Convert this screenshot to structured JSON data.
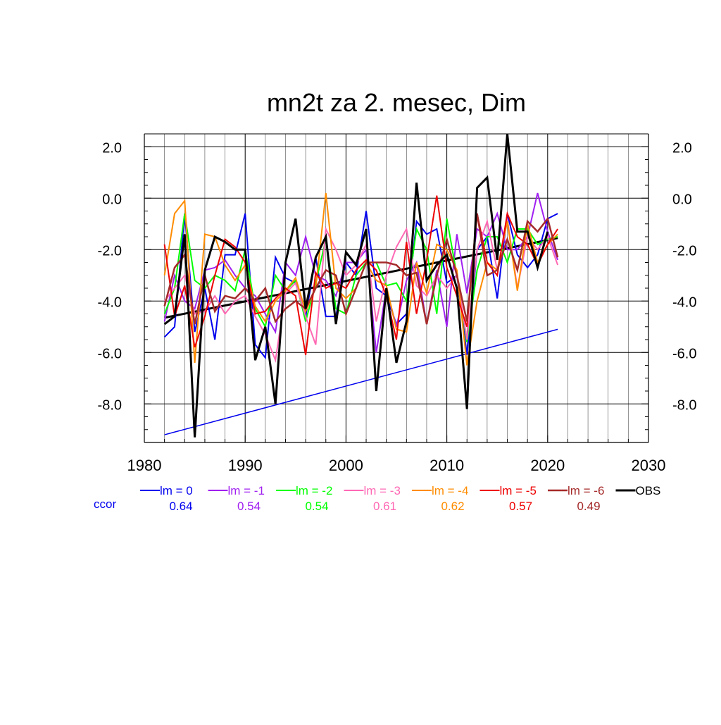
{
  "chart_data": {
    "type": "line",
    "title": "mn2t za 2. mesec, Dim",
    "xlabel": "",
    "ylabel": "",
    "xlim": [
      1980,
      2030
    ],
    "ylim": [
      -9.5,
      2.5
    ],
    "x_ticks": [
      1980,
      1990,
      2000,
      2010,
      2020,
      2030
    ],
    "x_tick_labels": [
      "1980",
      "1990",
      "2000",
      "2010",
      "2020",
      "2030"
    ],
    "y_ticks": [
      2,
      0,
      -2,
      -4,
      -6,
      -8
    ],
    "y_tick_labels": [
      "2.0",
      "0.0",
      "-2.0",
      "-4.0",
      "-6.0",
      "-8.0"
    ],
    "grid": true,
    "legend_position": "bottom",
    "ccor_label": "ccor",
    "x": [
      1982,
      1983,
      1984,
      1985,
      1986,
      1987,
      1988,
      1989,
      1990,
      1991,
      1992,
      1993,
      1994,
      1995,
      1996,
      1997,
      1998,
      1999,
      2000,
      2001,
      2002,
      2003,
      2004,
      2005,
      2006,
      2007,
      2008,
      2009,
      2010,
      2011,
      2012,
      2013,
      2014,
      2015,
      2016,
      2017,
      2018,
      2019,
      2020,
      2021
    ],
    "series": [
      {
        "name": "lm = 0",
        "color": "#0000ee",
        "width": 2,
        "ccor": "0.64",
        "values": [
          -5.4,
          -5.0,
          -0.6,
          -5.2,
          -3.5,
          -5.5,
          -2.2,
          -2.2,
          -0.6,
          -5.7,
          -6.2,
          -2.3,
          -3.1,
          -3.3,
          -4.6,
          -2.3,
          -4.6,
          -4.6,
          -2.5,
          -3.0,
          -0.5,
          -3.5,
          -3.8,
          -4.9,
          -4.5,
          -0.9,
          -1.4,
          -1.2,
          -3.3,
          -3.0,
          -6.1,
          -2.0,
          -1.5,
          -3.9,
          -0.6,
          -2.2,
          -2.7,
          -2.2,
          -0.8,
          -0.6
        ]
      },
      {
        "name": "lm = -1",
        "color": "#a020f0",
        "width": 2,
        "ccor": "0.54",
        "values": [
          -4.8,
          -3.0,
          -4.0,
          -4.3,
          -2.8,
          -2.7,
          -2.4,
          -3.0,
          -3.5,
          -3.8,
          -4.5,
          -5.2,
          -2.5,
          -3.0,
          -1.5,
          -3.0,
          -3.2,
          -3.8,
          -2.5,
          -2.5,
          -2.0,
          -6.0,
          -3.5,
          -5.0,
          -3.2,
          -2.5,
          -4.9,
          -2.8,
          -5.0,
          -1.4,
          -3.7,
          -1.2,
          -1.5,
          -0.6,
          -2.0,
          -2.0,
          -1.5,
          0.2,
          -1.3,
          -2.4
        ]
      },
      {
        "name": "lm = -2",
        "color": "#00ff00",
        "width": 2,
        "ccor": "0.54",
        "values": [
          -4.5,
          -3.5,
          -0.6,
          -3.2,
          -3.5,
          -3.0,
          -3.2,
          -3.6,
          -2.0,
          -4.3,
          -5.0,
          -3.0,
          -3.6,
          -3.2,
          -4.8,
          -3.3,
          -1.6,
          -4.3,
          -4.5,
          -3.0,
          -2.5,
          -2.5,
          -3.4,
          -3.3,
          -4.0,
          -1.2,
          -2.0,
          -4.5,
          -0.8,
          -3.0,
          -5.6,
          -2.8,
          -1.5,
          -1.5,
          -2.5,
          -1.2,
          -1.2,
          -1.8,
          -1.6,
          -1.5
        ]
      },
      {
        "name": "lm = -3",
        "color": "#ff69b4",
        "width": 2,
        "ccor": "0.61",
        "values": [
          -4.0,
          -3.5,
          -3.0,
          -4.5,
          -4.4,
          -3.8,
          -4.5,
          -4.0,
          -3.8,
          -4.6,
          -5.3,
          -6.3,
          -3.7,
          -3.3,
          -4.6,
          -5.7,
          -1.2,
          -2.0,
          -3.0,
          -2.6,
          -1.8,
          -4.8,
          -3.0,
          -1.9,
          -1.2,
          -3.4,
          -3.8,
          -3.0,
          -3.5,
          -3.0,
          -5.5,
          -2.0,
          -0.9,
          -2.8,
          -0.8,
          -3.5,
          -1.5,
          -2.0,
          -1.5,
          -2.6
        ]
      },
      {
        "name": "lm = -4",
        "color": "#ff8c00",
        "width": 2,
        "ccor": "0.62",
        "values": [
          -3.0,
          -0.6,
          -0.1,
          -6.4,
          -1.4,
          -1.5,
          -2.6,
          -3.2,
          -2.6,
          -4.2,
          -4.8,
          -4.0,
          -3.6,
          -3.1,
          -4.4,
          -3.5,
          0.2,
          -3.5,
          -3.9,
          -3.5,
          -2.5,
          -3.2,
          -3.4,
          -5.1,
          -5.2,
          -2.5,
          -3.7,
          -1.8,
          -2.0,
          -2.8,
          -6.5,
          -4.0,
          -2.5,
          -2.8,
          -0.9,
          -3.6,
          -1.0,
          -2.5,
          -1.8,
          -1.4
        ]
      },
      {
        "name": "lm = -5",
        "color": "#ee0000",
        "width": 2,
        "ccor": "0.57",
        "values": [
          -1.8,
          -4.6,
          -3.4,
          -5.8,
          -4.6,
          -3.0,
          -1.6,
          -1.9,
          -2.5,
          -4.5,
          -4.4,
          -3.9,
          -3.5,
          -3.8,
          -6.1,
          -2.9,
          -3.5,
          -3.3,
          -3.5,
          -2.8,
          -2.4,
          -2.8,
          -3.8,
          -5.5,
          -1.7,
          -4.5,
          -2.4,
          0.1,
          -2.7,
          -3.8,
          -5.0,
          -0.6,
          -2.5,
          -3.0,
          -0.6,
          -1.5,
          -1.8,
          -2.6,
          -1.8,
          -1.2
        ]
      },
      {
        "name": "lm = -6",
        "color": "#a52a2a",
        "width": 2.5,
        "ccor": "0.49",
        "values": [
          -4.2,
          -2.7,
          -2.2,
          -4.9,
          -3.0,
          -4.4,
          -3.8,
          -3.9,
          -3.5,
          -4.0,
          -3.5,
          -4.8,
          -4.3,
          -4.0,
          -4.3,
          -3.5,
          -2.8,
          -3.0,
          -4.5,
          -3.5,
          -2.5,
          -2.5,
          -2.5,
          -2.6,
          -3.0,
          -2.9,
          -4.9,
          -3.0,
          -1.6,
          -3.0,
          -4.8,
          -0.6,
          -3.0,
          -2.8,
          -1.6,
          -2.8,
          -0.9,
          -1.3,
          -0.8,
          -2.3
        ]
      },
      {
        "name": "OBS",
        "color": "#000000",
        "width": 3,
        "values": [
          -4.9,
          -4.6,
          -1.4,
          -9.3,
          -2.8,
          -1.5,
          -1.7,
          -2.0,
          -2.0,
          -6.3,
          -5.0,
          -8.0,
          -2.5,
          -0.8,
          -4.3,
          -2.3,
          -1.5,
          -4.9,
          -2.1,
          -2.6,
          -1.2,
          -7.5,
          -3.5,
          -6.4,
          -4.8,
          0.6,
          -3.2,
          -2.6,
          -2.2,
          -3.5,
          -8.2,
          0.4,
          0.8,
          -2.4,
          2.5,
          -1.3,
          -1.3,
          -2.7,
          -1.3,
          null
        ]
      }
    ],
    "trend_lines": [
      {
        "name": "OBS trend",
        "color": "#000000",
        "width": 3,
        "x": [
          1982,
          2021
        ],
        "y": [
          -4.65,
          -1.55
        ]
      },
      {
        "name": "lm = 0 trend",
        "color": "#0000ee",
        "width": 1.5,
        "x": [
          1982,
          2021
        ],
        "y": [
          -9.2,
          -5.1
        ]
      }
    ]
  }
}
